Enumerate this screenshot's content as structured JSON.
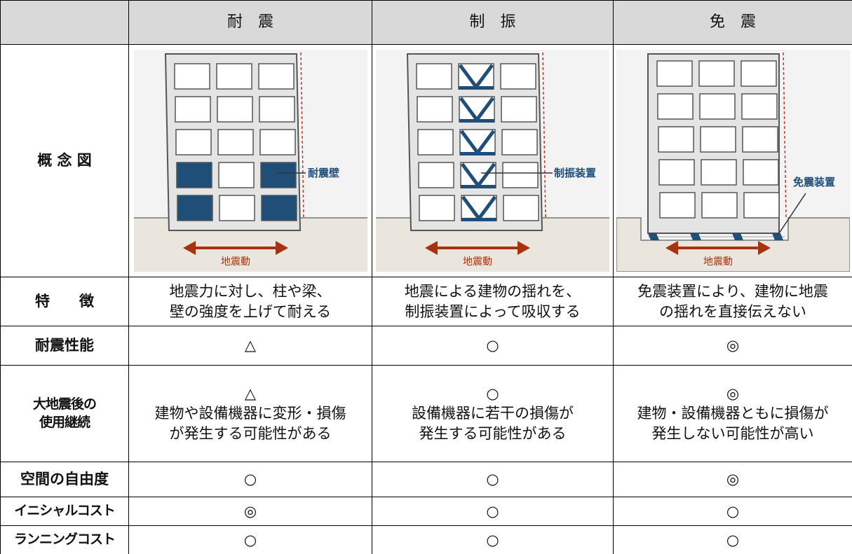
{
  "table": {
    "headers": [
      "耐　震",
      "制　振",
      "免　震"
    ],
    "diagram": {
      "label": "概 念 図",
      "items": [
        {
          "callout": "耐震壁",
          "motion": "地震動"
        },
        {
          "callout": "制振装置",
          "motion": "地震動"
        },
        {
          "callout": "免震装置",
          "motion": "地震動"
        }
      ]
    },
    "rows": [
      {
        "label": "特　　徴",
        "cells": [
          "地震力に対し、柱や梁、\n壁の強度を上げて耐える",
          "地震による建物の揺れを、\n制振装置によって吸収する",
          "免震装置により、建物に地震\nの揺れを直接伝えない"
        ]
      },
      {
        "label": "耐震性能",
        "cells": [
          "△",
          "○",
          "◎"
        ]
      },
      {
        "label": "大地震後の\n使用継続",
        "cells": [
          "△\n建物や設備機器に変形・損傷\nが発生する可能性がある",
          "○\n設備機器に若干の損傷が\n発生する可能性がある",
          "◎\n建物・設備機器ともに損傷が\n発生しない可能性が高い"
        ]
      },
      {
        "label": "空間の自由度",
        "cells": [
          "○",
          "○",
          "◎"
        ]
      },
      {
        "label": "イニシャルコスト",
        "cells": [
          "◎",
          "○",
          "○"
        ]
      },
      {
        "label": "ランニングコスト",
        "cells": [
          "○",
          "○",
          "○"
        ]
      }
    ]
  }
}
